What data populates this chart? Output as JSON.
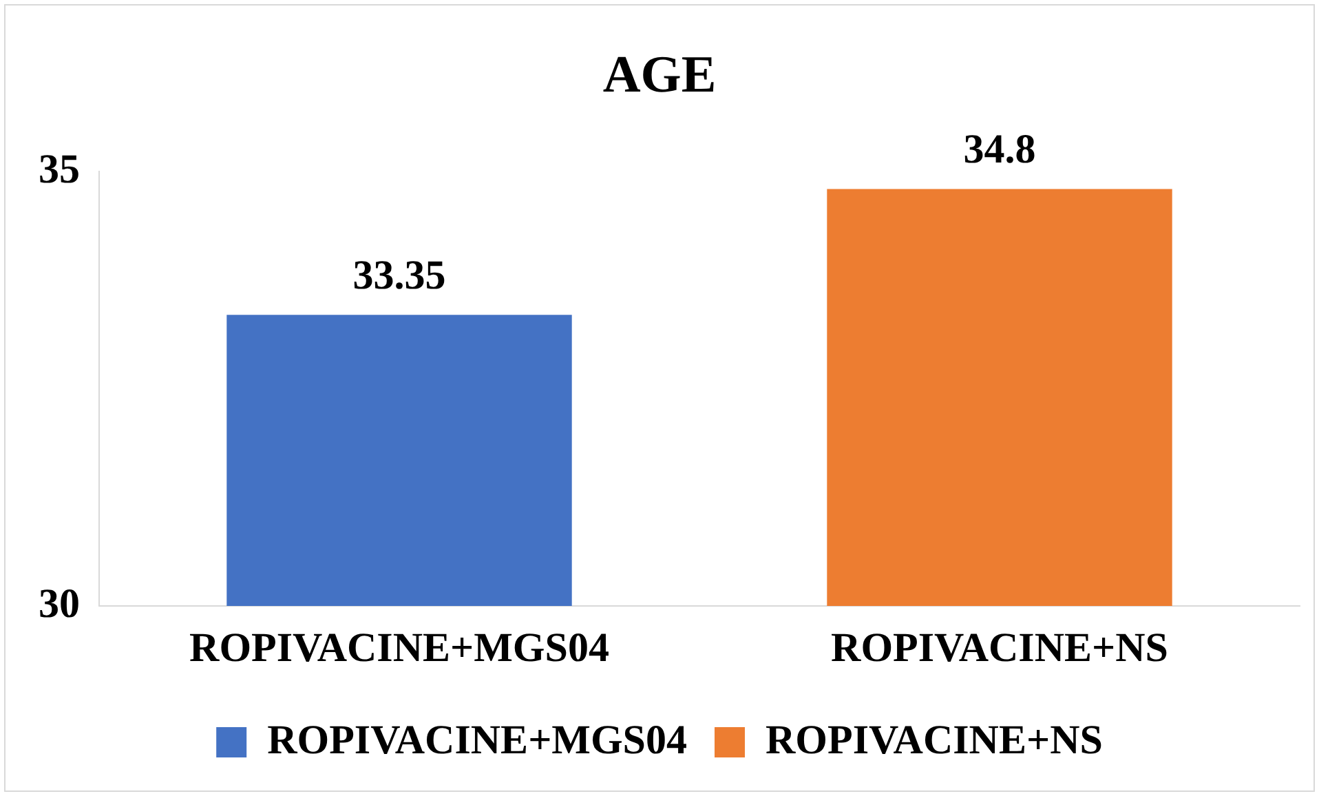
{
  "chart_data": {
    "type": "bar",
    "title": "AGE",
    "categories": [
      "ROPIVACINE+MGS04",
      "ROPIVACINE+NS"
    ],
    "series": [
      {
        "name": "ROPIVACINE+MGS04",
        "color": "#4472c4",
        "values": [
          33.35,
          null
        ]
      },
      {
        "name": "ROPIVACINE+NS",
        "color": "#ed7d31",
        "values": [
          null,
          34.8
        ]
      }
    ],
    "ylim": [
      30,
      35
    ],
    "yticks": [
      30,
      35
    ],
    "grid": false,
    "legend": "bottom",
    "data_labels": true
  }
}
